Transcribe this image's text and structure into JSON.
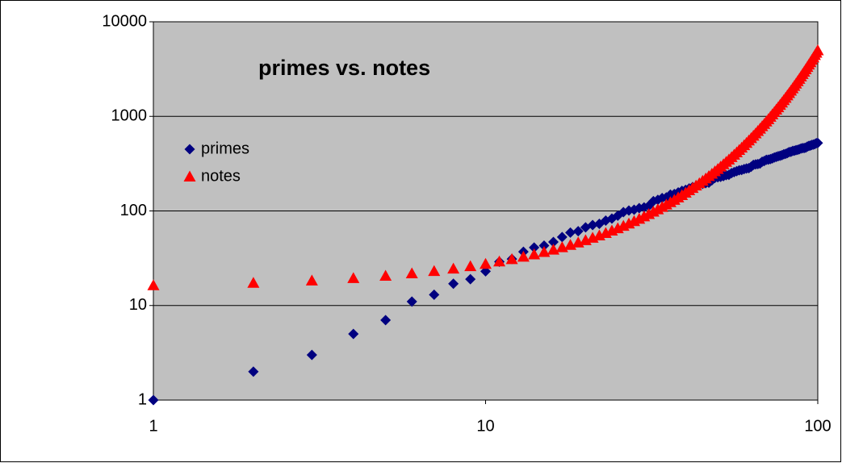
{
  "chart_data": {
    "type": "scatter",
    "title": "primes vs. notes",
    "x": [
      1,
      2,
      3,
      4,
      5,
      6,
      7,
      8,
      9,
      10,
      11,
      12,
      13,
      14,
      15,
      16,
      17,
      18,
      19,
      20,
      21,
      22,
      23,
      24,
      25,
      26,
      27,
      28,
      29,
      30,
      31,
      32,
      33,
      34,
      35,
      36,
      37,
      38,
      39,
      40,
      41,
      42,
      43,
      44,
      45,
      46,
      47,
      48,
      49,
      50,
      51,
      52,
      53,
      54,
      55,
      56,
      57,
      58,
      59,
      60,
      61,
      62,
      63,
      64,
      65,
      66,
      67,
      68,
      69,
      70,
      71,
      72,
      73,
      74,
      75,
      76,
      77,
      78,
      79,
      80,
      81,
      82,
      83,
      84,
      85,
      86,
      87,
      88,
      89,
      90,
      91,
      92,
      93,
      94,
      95,
      96,
      97,
      98,
      99,
      100
    ],
    "series": [
      {
        "name": "primes",
        "color": "#000080",
        "marker": "diamond",
        "values": [
          1,
          2,
          3,
          5,
          7,
          11,
          13,
          17,
          19,
          23,
          29,
          31,
          37,
          41,
          43,
          47,
          53,
          59,
          61,
          67,
          71,
          73,
          79,
          83,
          89,
          97,
          101,
          103,
          107,
          109,
          113,
          127,
          131,
          137,
          139,
          149,
          151,
          157,
          163,
          167,
          173,
          179,
          181,
          191,
          193,
          197,
          199,
          211,
          223,
          227,
          229,
          233,
          239,
          241,
          251,
          257,
          263,
          269,
          271,
          277,
          281,
          283,
          293,
          307,
          311,
          313,
          317,
          331,
          337,
          347,
          349,
          353,
          359,
          367,
          373,
          379,
          383,
          389,
          397,
          401,
          409,
          419,
          421,
          431,
          433,
          439,
          443,
          449,
          457,
          461,
          463,
          467,
          479,
          487,
          491,
          499,
          503,
          509,
          521,
          523
        ]
      },
      {
        "name": "notes",
        "color": "#ff0000",
        "marker": "triangle",
        "values": [
          16.35,
          17.32,
          18.35,
          19.45,
          20.6,
          21.83,
          23.12,
          24.5,
          25.96,
          27.5,
          29.14,
          30.87,
          32.7,
          34.65,
          36.71,
          38.89,
          41.2,
          43.65,
          46.25,
          49,
          51.91,
          55,
          58.27,
          61.74,
          65.41,
          69.3,
          73.42,
          77.78,
          82.41,
          87.31,
          92.5,
          98,
          103.83,
          110,
          116.54,
          123.47,
          130.81,
          138.59,
          146.83,
          155.56,
          164.81,
          174.61,
          185,
          196,
          207.65,
          220,
          233.08,
          246.94,
          261.63,
          277.18,
          293.66,
          311.13,
          329.63,
          349.23,
          369.99,
          392,
          415.3,
          440,
          466.16,
          493.88,
          523.25,
          554.37,
          587.33,
          622.25,
          659.25,
          698.46,
          739.99,
          783.99,
          830.61,
          880,
          932.33,
          987.77,
          1046.5,
          1108.73,
          1174.66,
          1244.51,
          1318.51,
          1396.91,
          1479.98,
          1567.98,
          1661.22,
          1760,
          1864.66,
          1975.53,
          2093,
          2217.46,
          2349.32,
          2489.02,
          2637.02,
          2793.83,
          2959.96,
          3135.96,
          3322.44,
          3520,
          3729.31,
          3951.07,
          4186.01,
          4434.92,
          4698.63,
          4978.03
        ]
      }
    ],
    "xlim": [
      1,
      100
    ],
    "ylim": [
      1,
      10000
    ],
    "xticks": [
      1,
      10,
      100
    ],
    "yticks": [
      1,
      10,
      100,
      1000,
      10000
    ],
    "xscale": "log",
    "yscale": "log",
    "grid": true,
    "plot_background": "#c0c0c0"
  }
}
